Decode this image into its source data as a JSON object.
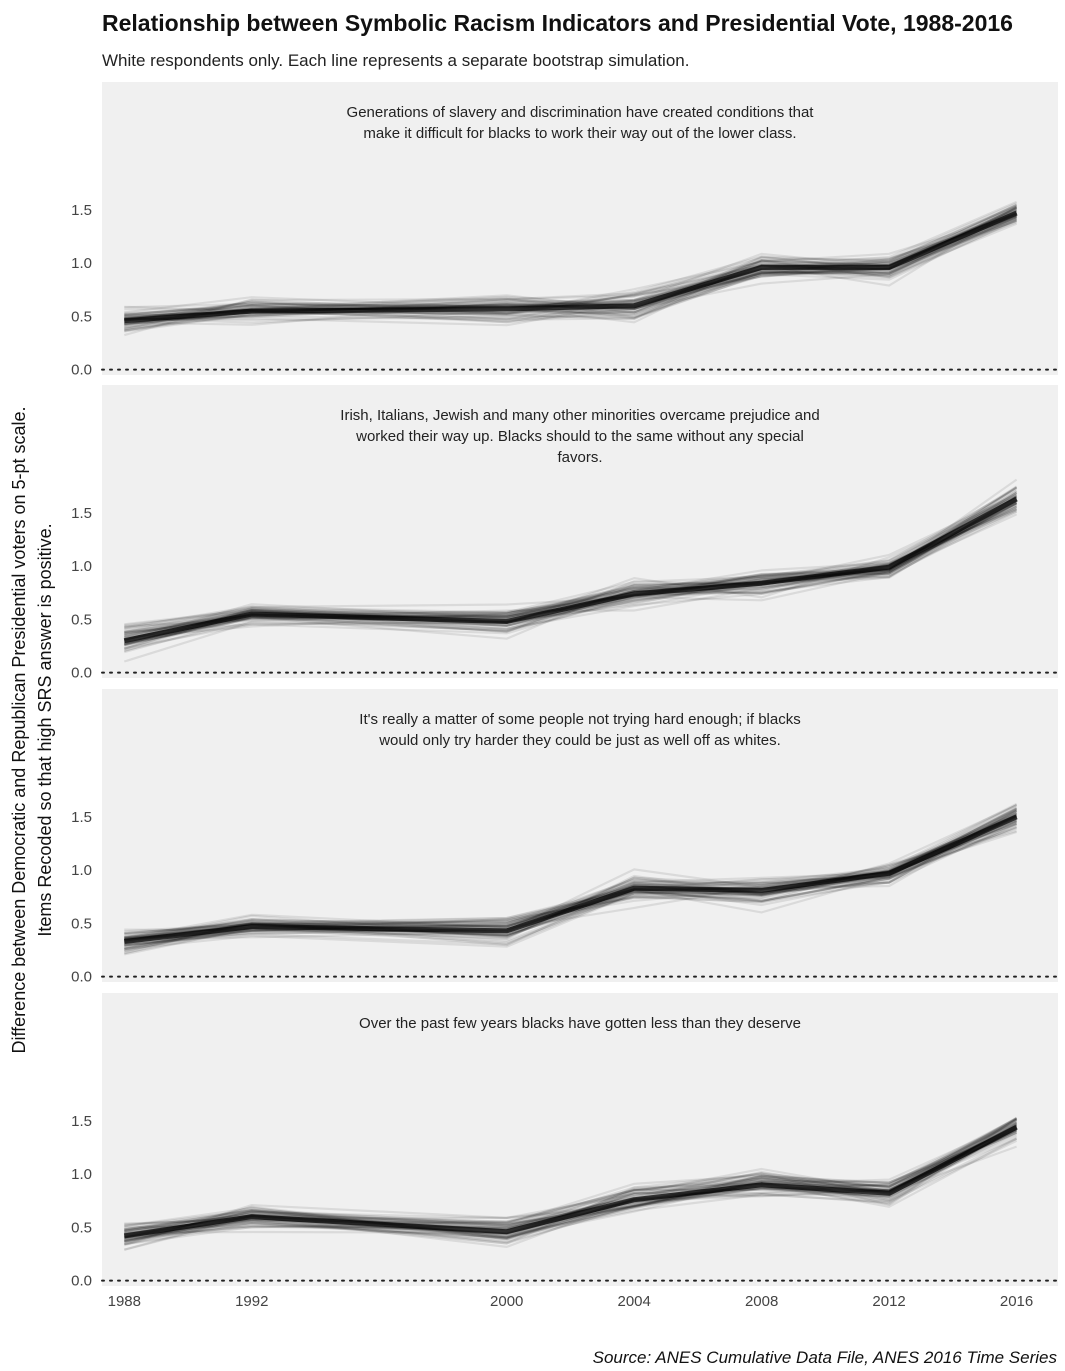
{
  "chart_data": {
    "type": "line",
    "title": "Relationship between Symbolic Racism Indicators and Presidential Vote, 1988-2016",
    "subtitle": "White respondents only. Each line represents a separate bootstrap simulation.",
    "ylabel": [
      "Difference between Democratic and Republican Presidential voters on 5-pt scale.",
      "Items Recoded so that high SRS answer is positive."
    ],
    "caption": "Source: ANES Cumulative Data File, ANES 2016 Time Series",
    "x": [
      1988,
      1992,
      2000,
      2004,
      2008,
      2012,
      2016
    ],
    "x_ticks": [
      "1988",
      "1992",
      "2000",
      "2004",
      "2008",
      "2012",
      "2016"
    ],
    "y_ticks": [
      "0.0",
      "0.5",
      "1.0",
      "1.5"
    ],
    "xlim": [
      1987.3,
      2017.3
    ],
    "ylim": [
      -0.05,
      2.7
    ],
    "reference_line": 0,
    "grid": false,
    "panels": [
      {
        "title": [
          "Generations of slavery and discrimination have created conditions that",
          "make it difficult for blacks to work their way out of the lower class."
        ],
        "mean": [
          0.46,
          0.55,
          0.57,
          0.6,
          0.96,
          0.96,
          1.47
        ],
        "spread": [
          0.12,
          0.12,
          0.13,
          0.15,
          0.12,
          0.1,
          0.12
        ]
      },
      {
        "title": [
          "Irish, Italians, Jewish and many other minorities overcame prejudice and",
          "worked their way up.  Blacks should to the same without any special",
          "favors."
        ],
        "mean": [
          0.3,
          0.55,
          0.48,
          0.74,
          0.84,
          0.99,
          1.63
        ],
        "spread": [
          0.13,
          0.1,
          0.12,
          0.13,
          0.12,
          0.1,
          0.12
        ]
      },
      {
        "title": [
          "It's really a matter of some people not trying hard enough; if blacks",
          "would only try harder they could be just as well off as whites."
        ],
        "mean": [
          0.33,
          0.47,
          0.43,
          0.83,
          0.81,
          0.97,
          1.5
        ],
        "spread": [
          0.12,
          0.1,
          0.14,
          0.13,
          0.12,
          0.1,
          0.12
        ]
      },
      {
        "title": [
          "Over the past few years blacks have gotten less than they deserve"
        ],
        "mean": [
          0.42,
          0.6,
          0.46,
          0.76,
          0.9,
          0.82,
          1.44
        ],
        "spread": [
          0.12,
          0.12,
          0.13,
          0.14,
          0.12,
          0.1,
          0.13
        ]
      }
    ],
    "bootstrap_lines": 60
  }
}
